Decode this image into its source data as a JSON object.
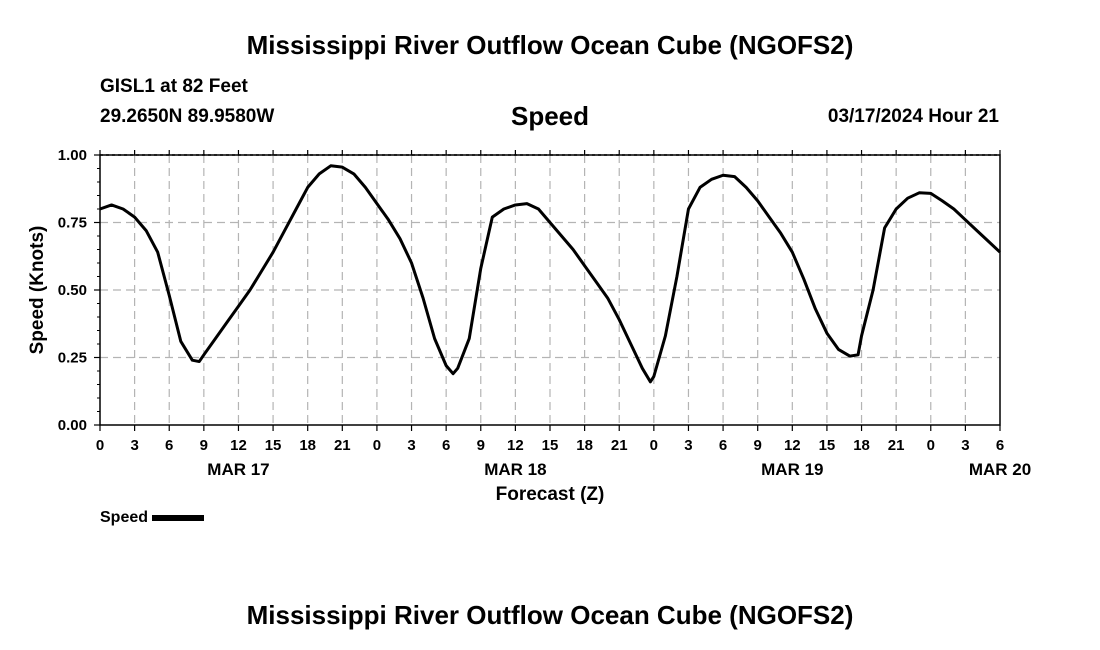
{
  "header": {
    "title": "Mississippi River Outflow Ocean Cube (NGOFS2)",
    "station": "GISL1 at 82 Feet",
    "coords": "29.2650N  89.9580W",
    "variable": "Speed",
    "datetime": "03/17/2024 Hour 21"
  },
  "footer": {
    "title": "Mississippi River Outflow Ocean Cube (NGOFS2)"
  },
  "legend": {
    "label": "Speed",
    "color": "#000000"
  },
  "chart_data": {
    "type": "line",
    "title": "Speed",
    "xlabel": "Forecast (Z)",
    "ylabel": "Speed (Knots)",
    "xlim": [
      0,
      78
    ],
    "ylim": [
      0,
      1.0
    ],
    "grid": true,
    "x_ticks": [
      0,
      3,
      6,
      9,
      12,
      15,
      18,
      21,
      24,
      27,
      30,
      33,
      36,
      39,
      42,
      45,
      48,
      51,
      54,
      57,
      60,
      63,
      66,
      69,
      72,
      75,
      78
    ],
    "x_tick_labels": [
      "0",
      "3",
      "6",
      "9",
      "12",
      "15",
      "18",
      "21",
      "0",
      "3",
      "6",
      "9",
      "12",
      "15",
      "18",
      "21",
      "0",
      "3",
      "6",
      "9",
      "12",
      "15",
      "18",
      "21",
      "0",
      "3",
      "6"
    ],
    "y_ticks": [
      0,
      0.25,
      0.5,
      0.75,
      1.0
    ],
    "y_tick_labels": [
      "0.00",
      "0.25",
      "0.50",
      "0.75",
      "1.00"
    ],
    "date_labels": [
      {
        "hour": 12,
        "label": "MAR 17"
      },
      {
        "hour": 36,
        "label": "MAR 18"
      },
      {
        "hour": 60,
        "label": "MAR 19"
      },
      {
        "hour": 78,
        "label": "MAR 20"
      }
    ],
    "series": [
      {
        "name": "Speed",
        "color": "#000000",
        "x": [
          0,
          1,
          2,
          3,
          4,
          5,
          6,
          7,
          8,
          8.6,
          9,
          10,
          11,
          12,
          13,
          14,
          15,
          16,
          17,
          18,
          19,
          20,
          21,
          22,
          23,
          24,
          25,
          26,
          27,
          28,
          29,
          30,
          30.6,
          31,
          32,
          33,
          34,
          35,
          36,
          37,
          38,
          39,
          40,
          41,
          42,
          43,
          44,
          45,
          46,
          47,
          47.7,
          48,
          49,
          50,
          51,
          52,
          53,
          54,
          55,
          56,
          57,
          58,
          59,
          60,
          61,
          62,
          63,
          64,
          65,
          65.7,
          66,
          67,
          68,
          69,
          70,
          71,
          72,
          73,
          74,
          75,
          76,
          77,
          78
        ],
        "values": [
          0.8,
          0.815,
          0.8,
          0.77,
          0.72,
          0.64,
          0.48,
          0.31,
          0.24,
          0.235,
          0.26,
          0.32,
          0.38,
          0.44,
          0.5,
          0.57,
          0.64,
          0.72,
          0.8,
          0.88,
          0.93,
          0.96,
          0.955,
          0.93,
          0.88,
          0.82,
          0.76,
          0.69,
          0.6,
          0.47,
          0.32,
          0.22,
          0.19,
          0.21,
          0.32,
          0.58,
          0.77,
          0.8,
          0.815,
          0.82,
          0.8,
          0.75,
          0.7,
          0.65,
          0.59,
          0.53,
          0.47,
          0.39,
          0.3,
          0.21,
          0.16,
          0.18,
          0.33,
          0.55,
          0.8,
          0.88,
          0.91,
          0.925,
          0.92,
          0.88,
          0.83,
          0.77,
          0.71,
          0.64,
          0.54,
          0.43,
          0.34,
          0.28,
          0.255,
          0.26,
          0.33,
          0.5,
          0.73,
          0.8,
          0.84,
          0.86,
          0.858,
          0.83,
          0.8,
          0.76,
          0.72,
          0.68,
          0.64
        ]
      }
    ]
  }
}
